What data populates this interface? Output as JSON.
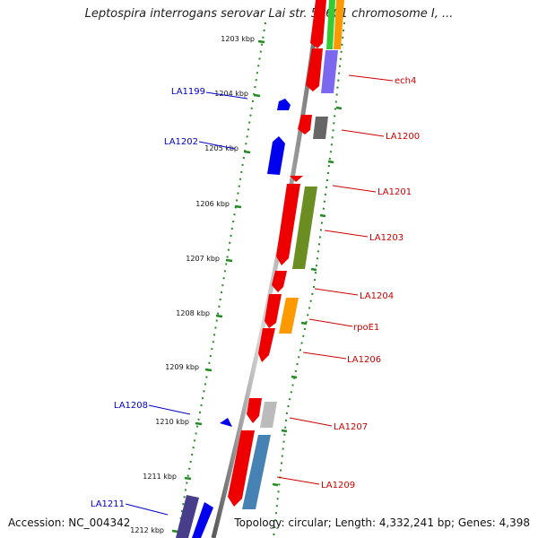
{
  "title": "Leptospira interrogans serovar Lai str. 56601 chromosome I, ...",
  "footer": {
    "accession": "Accession: NC_004342",
    "topology": "Topology: circular; Length: 4,332,241 bp; Genes: 4,398"
  },
  "colors": {
    "backbone": "#7f7f7f",
    "tick": "#228b22",
    "forward_label": "#0000cc",
    "reverse_label": "#cc0000"
  },
  "ruler_labels": [
    "1203 kbp",
    "1204 kbp",
    "1205 kbp",
    "1206 kbp",
    "1207 kbp",
    "1208 kbp",
    "1209 kbp",
    "1210 kbp",
    "1211 kbp",
    "1212 kbp"
  ],
  "gene_labels": [
    {
      "id": "ech4",
      "text": "ech4",
      "color": "#cc0000"
    },
    {
      "id": "la1199",
      "text": "LA1199",
      "color": "#0000cc"
    },
    {
      "id": "la1200",
      "text": "LA1200",
      "color": "#cc0000"
    },
    {
      "id": "la1202",
      "text": "LA1202",
      "color": "#0000cc"
    },
    {
      "id": "la1201",
      "text": "LA1201",
      "color": "#cc0000"
    },
    {
      "id": "la1203",
      "text": "LA1203",
      "color": "#cc0000"
    },
    {
      "id": "la1204",
      "text": "LA1204",
      "color": "#cc0000"
    },
    {
      "id": "rpoe1",
      "text": "rpoE1",
      "color": "#cc0000"
    },
    {
      "id": "la1206",
      "text": "LA1206",
      "color": "#cc0000"
    },
    {
      "id": "la1208",
      "text": "LA1208",
      "color": "#0000cc"
    },
    {
      "id": "la1207",
      "text": "LA1207",
      "color": "#cc0000"
    },
    {
      "id": "la1209",
      "text": "LA1209",
      "color": "#cc0000"
    },
    {
      "id": "la1211",
      "text": "LA1211",
      "color": "#0000cc"
    }
  ]
}
